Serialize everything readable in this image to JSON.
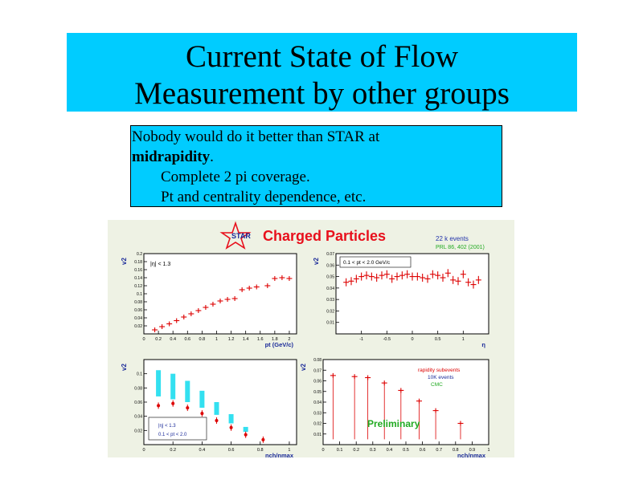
{
  "slide": {
    "title_line1": "Current State of Flow",
    "title_line2": "Measurement by other groups",
    "text_line1": "Nobody would do it better than STAR at",
    "text_line2_bold": "midrapidity",
    "text_line2_rest": ".",
    "text_line3": "Complete 2 pi coverage.",
    "text_line4": "Pt and centrality dependence, etc."
  },
  "figure": {
    "logo_text": "STAR",
    "heading": "Charged Particles",
    "events_note": "22 k events",
    "ref_note": "PRL 86, 402 (2001)"
  },
  "colors": {
    "slide_box": "#00ccff",
    "heading": "#e8101c",
    "marker": "#dd0000",
    "band": "#33e0f0",
    "preliminary": "#22aa22",
    "figure_bg": "#eef2e4"
  },
  "chart_data": [
    {
      "type": "scatter",
      "ylabel": "v2",
      "xlabel": "pt (GeV/c)",
      "annotation": "|η| < 1.3",
      "xlim": [
        0,
        2.1
      ],
      "ylim": [
        0,
        0.2
      ],
      "xticks": [
        "0",
        "0.2",
        "0.4",
        "0.6",
        "0.8",
        "1",
        "1.2",
        "1.4",
        "1.6",
        "1.8",
        "2"
      ],
      "yticks": [
        "0.02",
        "0.04",
        "0.06",
        "0.08",
        "0.1",
        "0.12",
        "0.14",
        "0.16",
        "0.18",
        "0.2"
      ],
      "x": [
        0.15,
        0.25,
        0.35,
        0.45,
        0.55,
        0.65,
        0.75,
        0.85,
        0.95,
        1.05,
        1.15,
        1.25,
        1.35,
        1.45,
        1.55,
        1.7,
        1.8,
        1.9,
        2.0
      ],
      "y": [
        0.01,
        0.018,
        0.025,
        0.033,
        0.042,
        0.05,
        0.058,
        0.066,
        0.074,
        0.082,
        0.086,
        0.088,
        0.11,
        0.114,
        0.117,
        0.12,
        0.138,
        0.14,
        0.138
      ]
    },
    {
      "type": "scatter",
      "ylabel": "v2",
      "xlabel": "η",
      "annotation": "0.1 < pt < 2.0 GeV/c",
      "xlim": [
        -1.5,
        1.5
      ],
      "ylim": [
        0,
        0.07
      ],
      "xticks": [
        "-1",
        "-0.5",
        "0",
        "0.5",
        "1"
      ],
      "yticks": [
        "0.01",
        "0.02",
        "0.03",
        "0.04",
        "0.05",
        "0.06",
        "0.07"
      ],
      "x": [
        -1.3,
        -1.2,
        -1.1,
        -1.0,
        -0.9,
        -0.8,
        -0.7,
        -0.6,
        -0.5,
        -0.4,
        -0.3,
        -0.2,
        -0.1,
        0.0,
        0.1,
        0.2,
        0.3,
        0.4,
        0.5,
        0.6,
        0.7,
        0.8,
        0.9,
        1.0,
        1.1,
        1.2,
        1.3
      ],
      "y": [
        0.045,
        0.046,
        0.048,
        0.05,
        0.051,
        0.05,
        0.049,
        0.051,
        0.052,
        0.048,
        0.05,
        0.051,
        0.052,
        0.05,
        0.05,
        0.049,
        0.048,
        0.052,
        0.051,
        0.049,
        0.053,
        0.047,
        0.046,
        0.052,
        0.045,
        0.043,
        0.047
      ]
    },
    {
      "type": "scatter",
      "ylabel": "v2",
      "xlabel": "nch/nmax",
      "legend": [
        "|η| < 1.3",
        "0.1 < pt < 2.0"
      ],
      "xlim": [
        0,
        1.05
      ],
      "ylim": [
        0,
        0.12
      ],
      "xticks": [
        "0",
        "0.2",
        "0.4",
        "0.6",
        "0.8",
        "1"
      ],
      "yticks": [
        "0.02",
        "0.04",
        "0.06",
        "0.08",
        "0.1"
      ],
      "series": [
        {
          "x": [
            0.1,
            0.2,
            0.3,
            0.4,
            0.5,
            0.6,
            0.7,
            0.82
          ],
          "values": [
            0.055,
            0.058,
            0.052,
            0.044,
            0.034,
            0.024,
            0.014,
            0.007
          ]
        },
        {
          "x": [
            0.1,
            0.2,
            0.3,
            0.4,
            0.5,
            0.6,
            0.7
          ],
          "band_lo": [
            0.068,
            0.064,
            0.06,
            0.052,
            0.042,
            0.03,
            0.018
          ],
          "band_hi": [
            0.105,
            0.1,
            0.09,
            0.076,
            0.06,
            0.043,
            0.025
          ]
        }
      ]
    },
    {
      "type": "scatter",
      "ylabel": "v2",
      "xlabel": "nch/nmax",
      "legend": [
        "rapidity subevents",
        "10K events",
        "CMC"
      ],
      "annotation": "Preliminary",
      "xlim": [
        0,
        1.0
      ],
      "ylim": [
        0,
        0.08
      ],
      "xticks": [
        "0",
        "0.1",
        "0.2",
        "0.3",
        "0.4",
        "0.5",
        "0.6",
        "0.7",
        "0.8",
        "0.9",
        "1"
      ],
      "yticks": [
        "0.01",
        "0.02",
        "0.03",
        "0.04",
        "0.05",
        "0.06",
        "0.07",
        "0.08"
      ],
      "x": [
        0.06,
        0.19,
        0.27,
        0.37,
        0.47,
        0.58,
        0.68,
        0.83
      ],
      "y": [
        0.065,
        0.064,
        0.063,
        0.058,
        0.051,
        0.041,
        0.032,
        0.02
      ]
    }
  ]
}
